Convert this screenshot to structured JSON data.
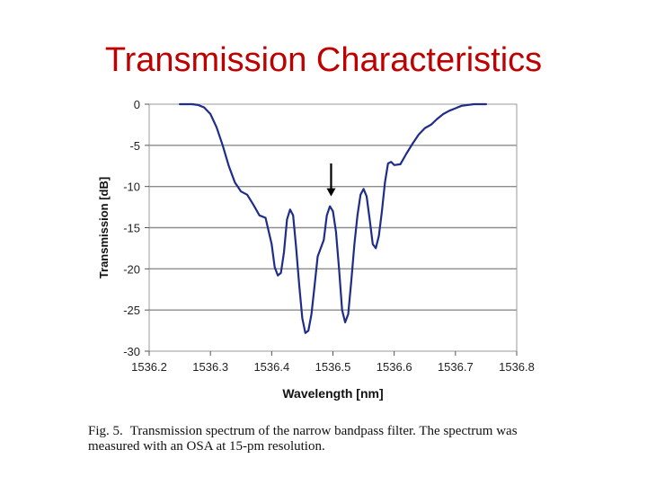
{
  "slide": {
    "title": "Transmission Characteristics",
    "caption_figure": "Fig. 5.",
    "caption_text": "Transmission spectrum of the narrow bandpass filter. The spectrum was measured with an OSA at 15-pm resolution."
  },
  "chart_data": {
    "type": "line",
    "title": "",
    "xlabel": "Wavelength [nm]",
    "ylabel": "Transmission [dB]",
    "xlim": [
      1536.2,
      1536.8
    ],
    "ylim": [
      -30,
      0
    ],
    "xticks": [
      "1536.2",
      "1536.3",
      "1536.4",
      "1536.5",
      "1536.6",
      "1536.7",
      "1536.8"
    ],
    "yticks": [
      "0",
      "-5",
      "-10",
      "-15",
      "-20",
      "-25",
      "-30"
    ],
    "grid": "horizontal",
    "line_color": "#1f2d8a",
    "annotation": {
      "type": "arrow",
      "x": 1536.497,
      "y_from": -7.2,
      "y_to": -11.2
    },
    "series": [
      {
        "x": [
          1536.25,
          1536.27,
          1536.28,
          1536.29,
          1536.3,
          1536.31,
          1536.32,
          1536.33,
          1536.34,
          1536.35,
          1536.36,
          1536.37,
          1536.38,
          1536.39,
          1536.4,
          1536.405,
          1536.41,
          1536.415,
          1536.42,
          1536.425,
          1536.43,
          1536.435,
          1536.44,
          1536.445,
          1536.45,
          1536.455,
          1536.46,
          1536.465,
          1536.47,
          1536.475,
          1536.48,
          1536.485,
          1536.49,
          1536.495,
          1536.5,
          1536.505,
          1536.51,
          1536.515,
          1536.52,
          1536.525,
          1536.53,
          1536.535,
          1536.54,
          1536.545,
          1536.55,
          1536.555,
          1536.56,
          1536.565,
          1536.57,
          1536.575,
          1536.58,
          1536.585,
          1536.59,
          1536.595,
          1536.6,
          1536.61,
          1536.62,
          1536.63,
          1536.64,
          1536.65,
          1536.66,
          1536.67,
          1536.68,
          1536.69,
          1536.7,
          1536.71,
          1536.72,
          1536.73,
          1536.74,
          1536.75
        ],
        "y": [
          0,
          0,
          -0.1,
          -0.4,
          -1.2,
          -2.8,
          -5.0,
          -7.5,
          -9.5,
          -10.6,
          -11.0,
          -12.2,
          -13.5,
          -13.8,
          -17.0,
          -19.8,
          -20.8,
          -20.5,
          -18.0,
          -14.0,
          -12.8,
          -13.5,
          -17.5,
          -22.0,
          -26.0,
          -27.8,
          -27.5,
          -25.5,
          -22.0,
          -18.5,
          -17.5,
          -16.5,
          -13.5,
          -12.4,
          -13.0,
          -15.5,
          -20.0,
          -25.0,
          -26.5,
          -25.5,
          -21.5,
          -17.0,
          -13.5,
          -11.0,
          -10.3,
          -11.2,
          -14.0,
          -17.0,
          -17.5,
          -16.0,
          -13.0,
          -9.5,
          -7.2,
          -7.0,
          -7.4,
          -7.3,
          -6.0,
          -4.8,
          -3.7,
          -2.9,
          -2.5,
          -1.8,
          -1.2,
          -0.8,
          -0.5,
          -0.2,
          -0.1,
          0,
          0,
          0
        ]
      }
    ]
  }
}
